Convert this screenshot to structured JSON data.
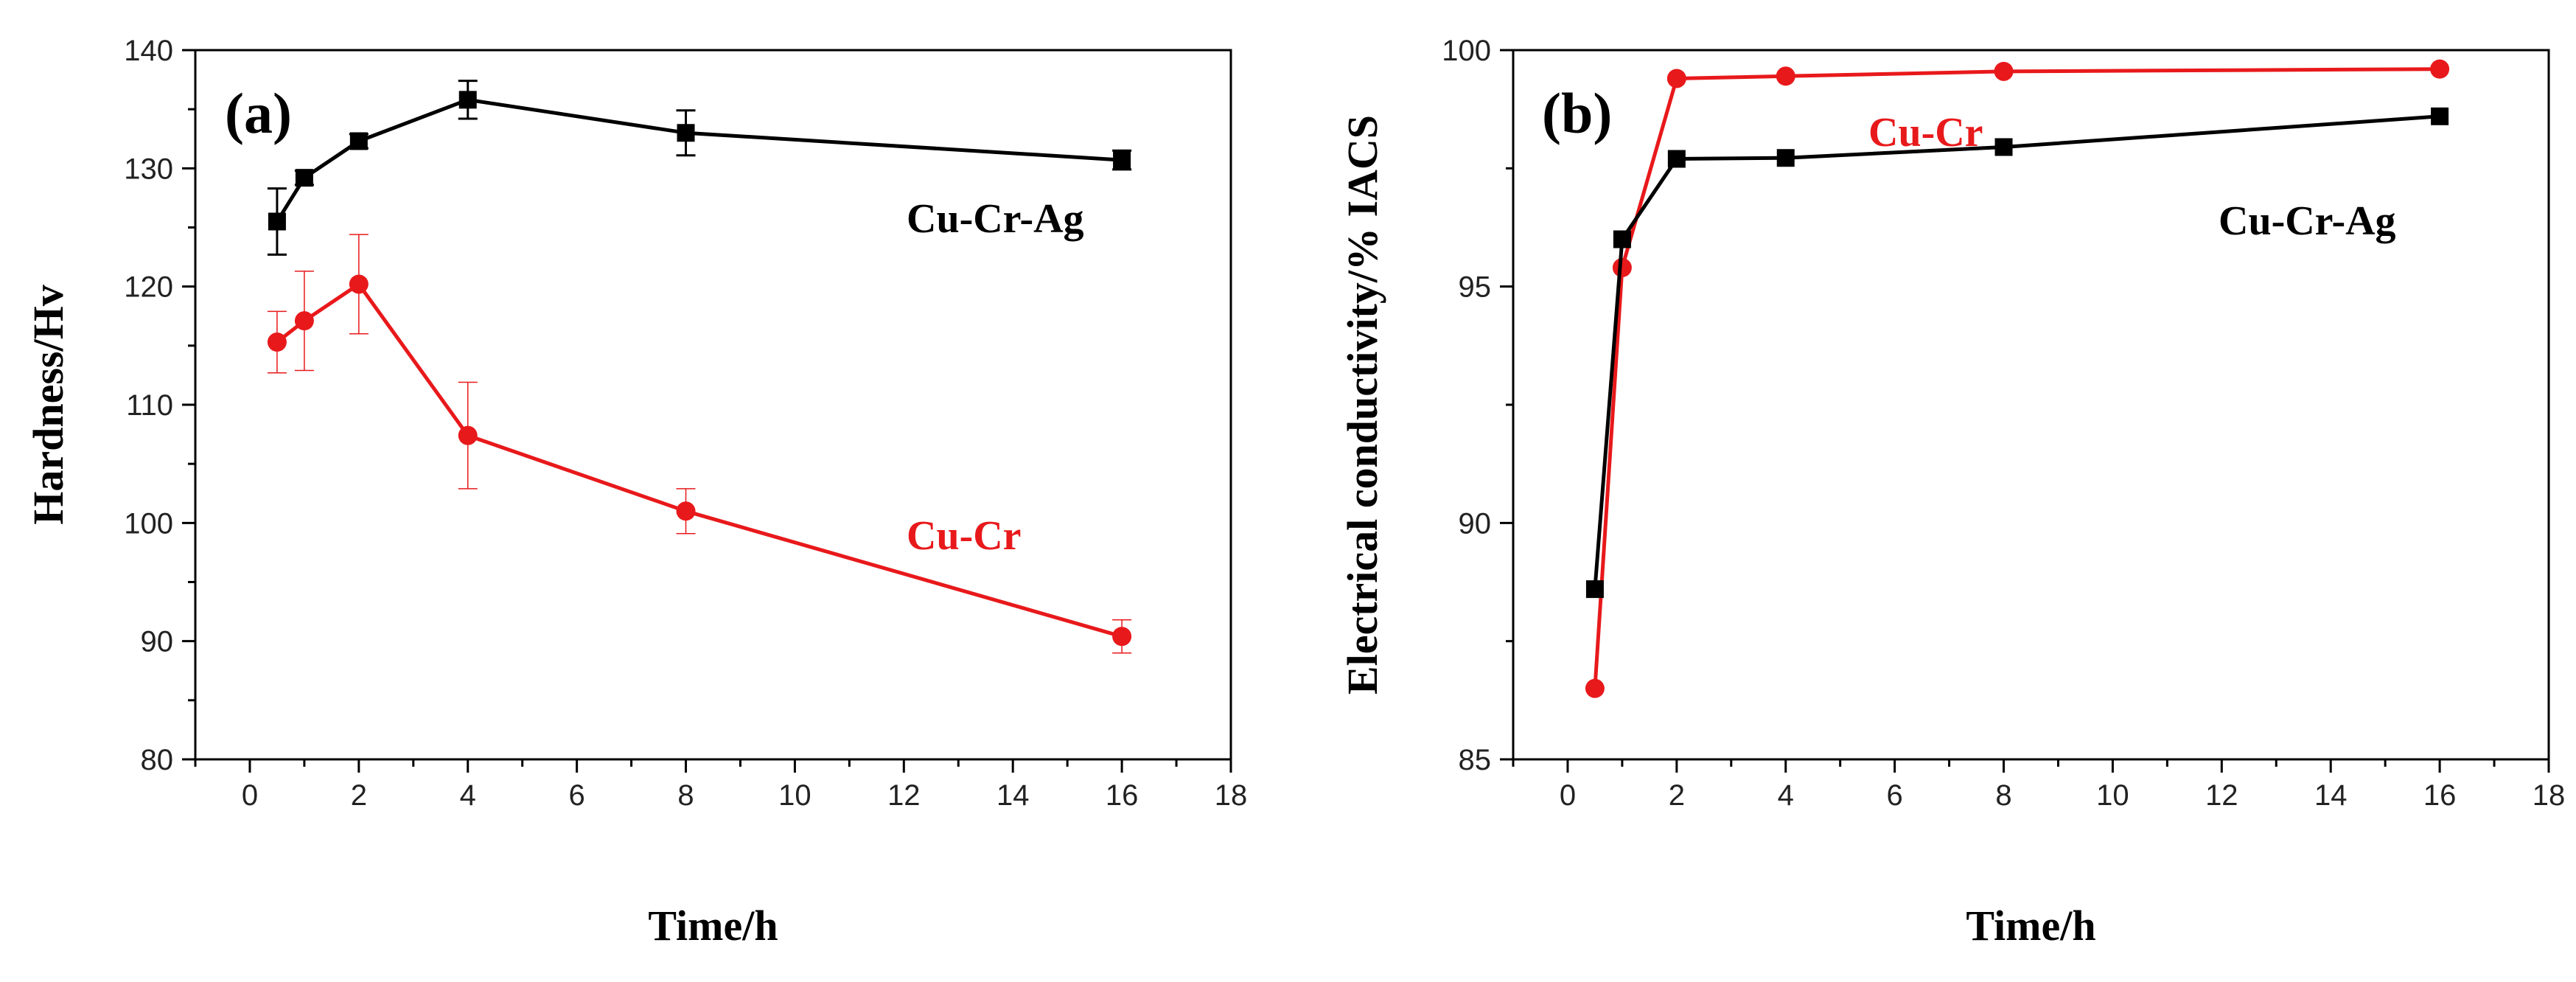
{
  "chart_data": [
    {
      "type": "line",
      "panel_label": "(a)",
      "xlabel": "Time/h",
      "ylabel": "Hardness/Hv",
      "xlim": [
        -1,
        18
      ],
      "ylim": [
        80,
        140
      ],
      "xticks": [
        0,
        2,
        4,
        6,
        8,
        10,
        12,
        14,
        16,
        18
      ],
      "yticks": [
        80,
        90,
        100,
        110,
        120,
        130,
        140
      ],
      "series": [
        {
          "name": "Cu-Cr-Ag",
          "color": "#000000",
          "marker": "square",
          "x": [
            0.5,
            1,
            2,
            4,
            8,
            16
          ],
          "y": [
            125.5,
            129.2,
            132.3,
            135.8,
            133.0,
            130.7
          ],
          "err": [
            2.8,
            0.6,
            0.6,
            1.6,
            1.9,
            0.8
          ]
        },
        {
          "name": "Cu-Cr",
          "color": "#e8191b",
          "marker": "circle",
          "x": [
            0.5,
            1,
            2,
            4,
            8,
            16
          ],
          "y": [
            115.3,
            117.1,
            120.2,
            107.4,
            101.0,
            90.4
          ],
          "err": [
            2.6,
            4.2,
            4.2,
            4.5,
            1.9,
            1.4
          ]
        }
      ]
    },
    {
      "type": "line",
      "panel_label": "(b)",
      "xlabel": "Time/h",
      "ylabel": "Electrical conductivity/% IACS",
      "xlim": [
        -1,
        18
      ],
      "ylim": [
        85,
        100
      ],
      "xticks": [
        0,
        2,
        4,
        6,
        8,
        10,
        12,
        14,
        16,
        18
      ],
      "yticks": [
        85,
        90,
        95,
        100
      ],
      "series": [
        {
          "name": "Cu-Cr",
          "color": "#e8191b",
          "marker": "circle",
          "x": [
            0.5,
            1,
            2,
            4,
            8,
            16
          ],
          "y": [
            86.5,
            95.4,
            99.4,
            99.45,
            99.55,
            99.6
          ]
        },
        {
          "name": "Cu-Cr-Ag",
          "color": "#000000",
          "marker": "square",
          "x": [
            0.5,
            1,
            2,
            4,
            8,
            16
          ],
          "y": [
            88.6,
            96.0,
            97.7,
            97.72,
            97.95,
            98.6
          ]
        }
      ]
    }
  ]
}
